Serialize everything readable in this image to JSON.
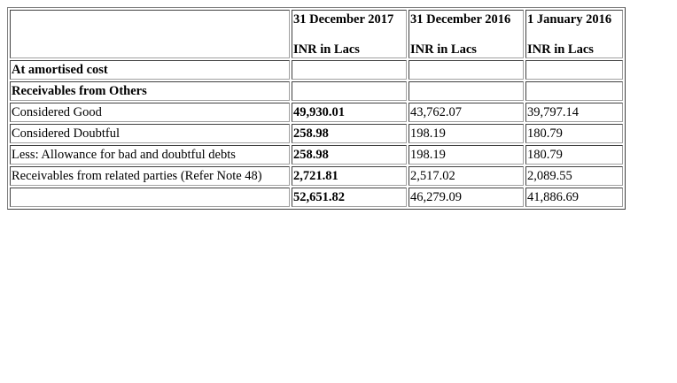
{
  "columns": [
    {
      "date": "31 December 2017",
      "unit": "INR in Lacs"
    },
    {
      "date": "31 December 2016",
      "unit": "INR in Lacs"
    },
    {
      "date": "1 January 2016",
      "unit": "INR in Lacs"
    }
  ],
  "rows": [
    {
      "label": "At amortised cost",
      "values": [
        "",
        "",
        ""
      ],
      "label_bold": true,
      "first_bold": false
    },
    {
      "label": "Receivables from Others",
      "values": [
        "",
        "",
        ""
      ],
      "label_bold": true,
      "first_bold": false
    },
    {
      "label": "Considered Good",
      "values": [
        "49,930.01",
        "43,762.07",
        "39,797.14"
      ],
      "label_bold": false,
      "first_bold": true
    },
    {
      "label": "Considered Doubtful",
      "values": [
        "258.98",
        "198.19",
        "180.79"
      ],
      "label_bold": false,
      "first_bold": true
    },
    {
      "label": "Less: Allowance for bad and doubtful debts",
      "values": [
        "258.98",
        "198.19",
        "180.79"
      ],
      "label_bold": false,
      "first_bold": true
    },
    {
      "label": "Receivables from related parties (Refer Note 48)",
      "values": [
        "2,721.81",
        "2,517.02",
        "2,089.55"
      ],
      "label_bold": false,
      "first_bold": true
    },
    {
      "label": "",
      "values": [
        "52,651.82",
        "46,279.09",
        "41,886.69"
      ],
      "label_bold": false,
      "first_bold": true
    }
  ]
}
